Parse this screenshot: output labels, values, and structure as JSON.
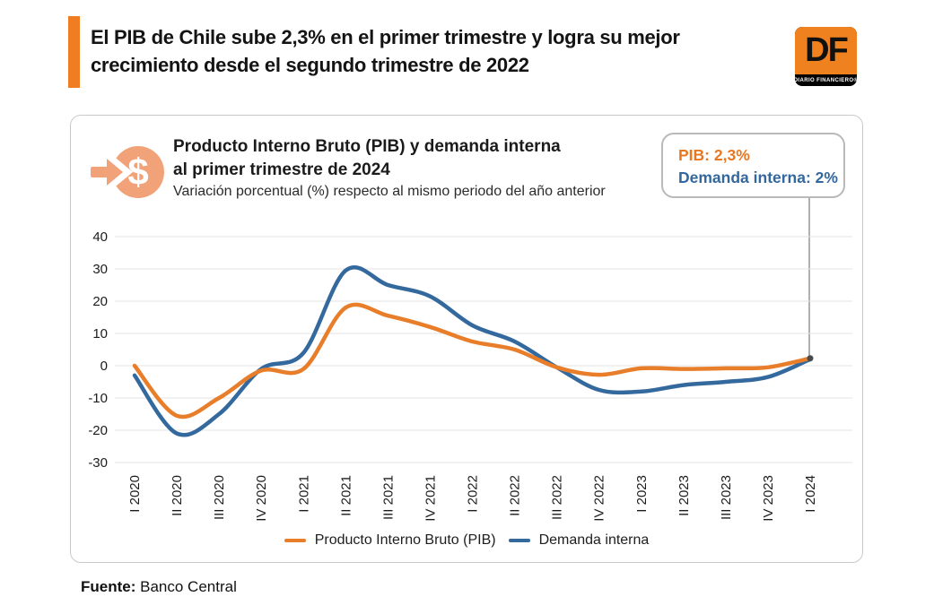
{
  "header": {
    "accent_color": "#F07D22",
    "title_line1": "El PIB de Chile sube 2,3% en el primer trimestre y logra su mejor",
    "title_line2": "crecimiento desde el segundo trimestre de 2022",
    "logo": {
      "text": "DF",
      "subtext": "DIARIO FINANCIERO®",
      "bg_color": "#F0811F"
    }
  },
  "card": {
    "icon_name": "money-arrow-icon",
    "icon_color": "#F2A278",
    "title_line1": "Producto Interno Bruto (PIB) y demanda interna",
    "title_line2": "al primer trimestre de 2024",
    "subtitle": "Variación porcentual (%) respecto al mismo periodo del año anterior",
    "callout": {
      "pib_label": "PIB: 2,3%",
      "pib_color": "#E87722",
      "demanda_label": "Demanda interna: 2%",
      "demanda_color": "#33689E"
    }
  },
  "chart_data": {
    "type": "line",
    "title": "Producto Interno Bruto (PIB) y demanda interna al primer trimestre de 2024",
    "subtitle": "Variación porcentual (%) respecto al mismo periodo del año anterior",
    "categories": [
      "I 2020",
      "II 2020",
      "III 2020",
      "IV 2020",
      "I 2021",
      "II 2021",
      "III 2021",
      "IV 2021",
      "I 2022",
      "II 2022",
      "III 2022",
      "IV 2022",
      "I 2023",
      "II 2023",
      "III 2023",
      "IV 2023",
      "I 2024"
    ],
    "series": [
      {
        "name": "Producto Interno Bruto (PIB)",
        "color": "#E87D2A",
        "values": [
          0,
          -15.5,
          -10,
          -1.5,
          -1,
          18,
          15.5,
          12,
          7.5,
          5,
          -0.5,
          -2.8,
          -0.8,
          -1,
          -0.8,
          -0.5,
          2.3
        ]
      },
      {
        "name": "Demanda interna",
        "color": "#34699E",
        "values": [
          -3,
          -21,
          -15,
          -1,
          4,
          29.5,
          25,
          21.5,
          12.5,
          7.5,
          -0.5,
          -7.5,
          -8,
          -6,
          -5,
          -3.5,
          2
        ]
      }
    ],
    "ylim": [
      -30,
      40
    ],
    "yticks": [
      40,
      30,
      20,
      10,
      0,
      -10,
      -20,
      -30
    ],
    "grid": true,
    "legend_position": "bottom",
    "grid_color": "#e3e3e3",
    "axis_text_color": "#1c1c1c",
    "end_marker_color": "#4a4a4a",
    "end_values": {
      "pib": "2,3%",
      "demanda_interna": "2%"
    }
  },
  "footer": {
    "label": "Fuente:",
    "text": " Banco Central"
  }
}
